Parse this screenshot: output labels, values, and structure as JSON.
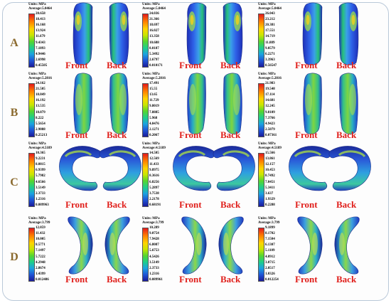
{
  "rows": [
    {
      "letter": "A",
      "panels": [
        {
          "units": "Units: MPa",
          "average": "Average:5.0464",
          "values": [
            "20.658",
            "18.413",
            "16.168",
            "13.924",
            "11.679",
            "9.4343",
            "7.1893",
            "4.9446",
            "2.6998",
            "0.45505"
          ]
        },
        {
          "units": "Units: MPa",
          "average": "Average:5.0464",
          "values": [
            "24.036",
            "21.366",
            "18.697",
            "16.027",
            "13.358",
            "10.688",
            "8.0187",
            "5.3492",
            "2.6797",
            "0.010171"
          ]
        },
        {
          "units": "Units: MPa",
          "average": "Average:5.0464",
          "values": [
            "26.043",
            "23.212",
            "20.381",
            "17.551",
            "14.719",
            "11.889",
            "9.0579",
            "6.2271",
            "3.3963",
            "0.56547"
          ]
        }
      ]
    },
    {
      "letter": "B",
      "panels": [
        {
          "units": "Units: MPa",
          "average": "Average:5.2816",
          "values": [
            "24.162",
            "21.505",
            "18.849",
            "16.192",
            "13.535",
            "10.879",
            "8.222",
            "5.5654",
            "2.9088",
            "0.25213"
          ]
        },
        {
          "units": "Units: MPa",
          "average": "Average:5.2816",
          "values": [
            "17.491",
            "15.55",
            "13.65",
            "11.729",
            "9.8019",
            "7.8885",
            "5.968",
            "4.0476",
            "2.1271",
            "0.2067"
          ]
        },
        {
          "units": "Units: MPa",
          "average": "Average:5.2816",
          "values": [
            "21.983",
            "19.548",
            "17.114",
            "14.681",
            "12.245",
            "9.8109",
            "7.3766",
            "4.9423",
            "2.5079",
            "0.07361"
          ]
        }
      ]
    },
    {
      "letter": "C",
      "panels": [
        {
          "units": "Units: MPa",
          "average": "Average:4.5189",
          "values": [
            "10.365",
            "9.2231",
            "8.0815",
            "6.9399",
            "5.7982",
            "4.6566",
            "3.5149",
            "2.3733",
            "1.2316",
            "0.089963"
          ]
        },
        {
          "units": "Units: MPa",
          "average": "Average:4.5189",
          "values": [
            "14.505",
            "12.569",
            "11.433",
            "9.8975",
            "8.3616",
            "6.8256",
            "5.2897",
            "3.7538",
            "2.2178",
            "0.68191"
          ]
        },
        {
          "units": "Units: MPa",
          "average": "Average:4.5189",
          "values": [
            "15.566",
            "13.861",
            "12.157",
            "10.453",
            "8.7492",
            "7.0451",
            "5.3411",
            "3.637",
            "1.9329",
            "0.2288"
          ]
        }
      ]
    },
    {
      "letter": "D",
      "panels": [
        {
          "units": "Units: MPa",
          "average": "Average:3.799",
          "values": [
            "12.859",
            "11.432",
            "10.005",
            "8.5771",
            "7.1497",
            "5.7222",
            "4.2948",
            "2.8674",
            "1.4399",
            "0.012486"
          ]
        },
        {
          "units": "Units: MPa",
          "average": "Average:3.799",
          "values": [
            "10.289",
            "9.0754",
            "7.9428",
            "6.8087",
            "5.6753",
            "4.5426",
            "3.5149",
            "2.3733",
            "1.2316",
            "0.089961"
          ]
        },
        {
          "units": "Units: MPa",
          "average": "Average:3.799",
          "values": [
            "9.1899",
            "8.1702",
            "7.1504",
            "6.1307",
            "5.1109",
            "4.0912",
            "3.0715",
            "2.0517",
            "1.0326",
            "0.012254"
          ]
        }
      ]
    }
  ],
  "labels": {
    "front": "Front",
    "back": "Back"
  },
  "colors": {
    "row_label": "#8b6a2e",
    "view_label": "#e0201c",
    "frame_border": "#b9c8d8"
  }
}
